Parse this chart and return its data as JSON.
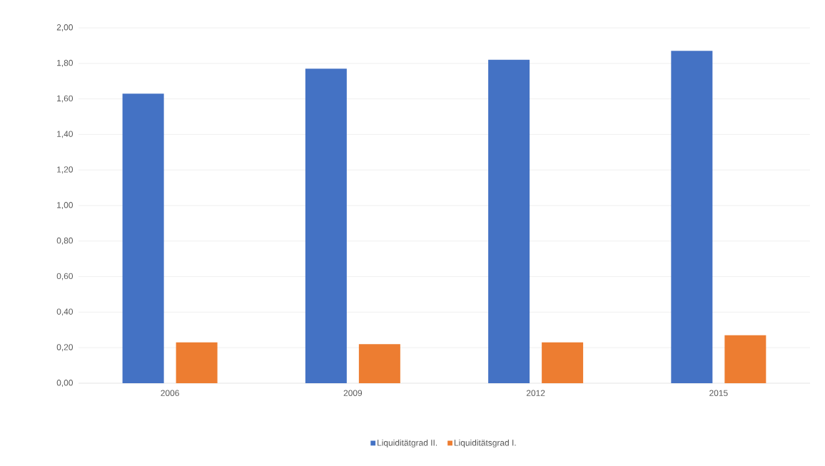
{
  "chart_data": {
    "type": "bar",
    "categories": [
      "2006",
      "2009",
      "2012",
      "2015"
    ],
    "series": [
      {
        "name": "Liquiditätgrad II.",
        "color": "#4472c4",
        "values": [
          1.63,
          1.77,
          1.82,
          1.87
        ]
      },
      {
        "name": "Liquiditätsgrad I.",
        "color": "#ed7d31",
        "values": [
          0.23,
          0.22,
          0.23,
          0.27
        ]
      }
    ],
    "ylim": [
      0,
      2
    ],
    "yticks": [
      {
        "value": 0,
        "label": "0,00"
      },
      {
        "value": 0.2,
        "label": "0,20"
      },
      {
        "value": 0.4,
        "label": "0,40"
      },
      {
        "value": 0.6,
        "label": "0,60"
      },
      {
        "value": 0.8,
        "label": "0,80"
      },
      {
        "value": 1,
        "label": "1,00"
      },
      {
        "value": 1.2,
        "label": "1,20"
      },
      {
        "value": 1.4,
        "label": "1,40"
      },
      {
        "value": 1.6,
        "label": "1,60"
      },
      {
        "value": 1.8,
        "label": "1,80"
      },
      {
        "value": 2,
        "label": "2,00"
      }
    ],
    "grid": "y",
    "legend": "bottom"
  }
}
